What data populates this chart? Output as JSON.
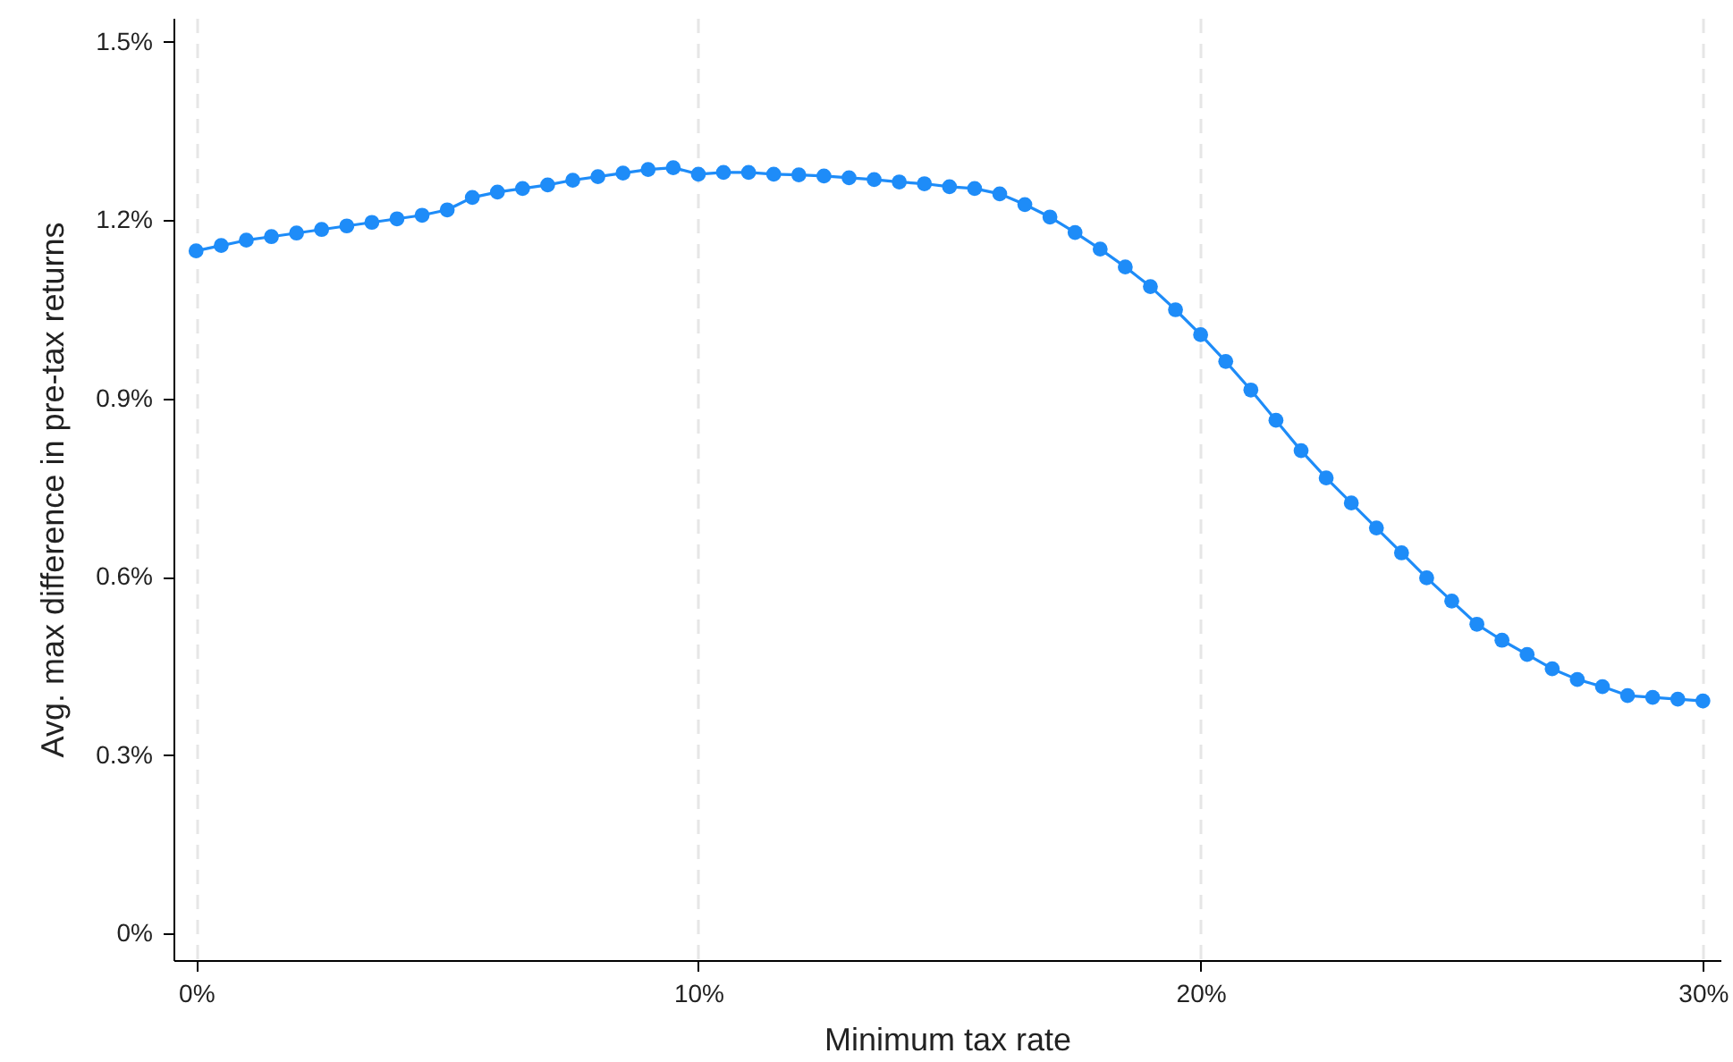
{
  "chart_data": {
    "type": "line",
    "xlabel": "Minimum tax rate",
    "ylabel": "Avg. max difference in pre-tax returns",
    "x": [
      0,
      0.5,
      1,
      1.5,
      2,
      2.5,
      3,
      3.5,
      4,
      4.5,
      5,
      5.5,
      6,
      6.5,
      7,
      7.5,
      8,
      8.5,
      9,
      9.5,
      10,
      10.5,
      11,
      11.5,
      12,
      12.5,
      13,
      13.5,
      14,
      14.5,
      15,
      15.5,
      16,
      16.5,
      17,
      17.5,
      18,
      18.5,
      19,
      19.5,
      20,
      20.5,
      21,
      21.5,
      22,
      22.5,
      23,
      23.5,
      24,
      24.5,
      25,
      25.5,
      26,
      26.5,
      27,
      27.5,
      28,
      28.5,
      29,
      29.5,
      30
    ],
    "series": [
      {
        "color": "#1e8cf8",
        "values": [
          1.148,
          1.157,
          1.166,
          1.172,
          1.178,
          1.184,
          1.19,
          1.196,
          1.202,
          1.208,
          1.217,
          1.238,
          1.247,
          1.253,
          1.259,
          1.267,
          1.273,
          1.279,
          1.285,
          1.288,
          1.277,
          1.28,
          1.28,
          1.277,
          1.276,
          1.274,
          1.271,
          1.268,
          1.264,
          1.261,
          1.256,
          1.253,
          1.244,
          1.226,
          1.205,
          1.179,
          1.151,
          1.121,
          1.088,
          1.049,
          1.007,
          0.962,
          0.914,
          0.863,
          0.812,
          0.766,
          0.724,
          0.682,
          0.64,
          0.598,
          0.559,
          0.52,
          0.493,
          0.469,
          0.445,
          0.427,
          0.415,
          0.4,
          0.397,
          0.394,
          0.391
        ]
      }
    ],
    "xlim": [
      -0.45,
      30.35
    ],
    "ylim": [
      -0.045,
      1.54
    ],
    "xticks": [
      {
        "value": 0,
        "label": "0%"
      },
      {
        "value": 10,
        "label": "10%"
      },
      {
        "value": 20,
        "label": "20%"
      },
      {
        "value": 30,
        "label": "30%"
      }
    ],
    "yticks": [
      {
        "value": 0,
        "label": "0%"
      },
      {
        "value": 0.3,
        "label": "0.3%"
      },
      {
        "value": 0.6,
        "label": "0.6%"
      },
      {
        "value": 0.9,
        "label": "0.9%"
      },
      {
        "value": 1.2,
        "label": "1.2%"
      },
      {
        "value": 1.5,
        "label": "1.5%"
      }
    ],
    "grid": "x",
    "marker": "circle",
    "line_style": "solid"
  }
}
